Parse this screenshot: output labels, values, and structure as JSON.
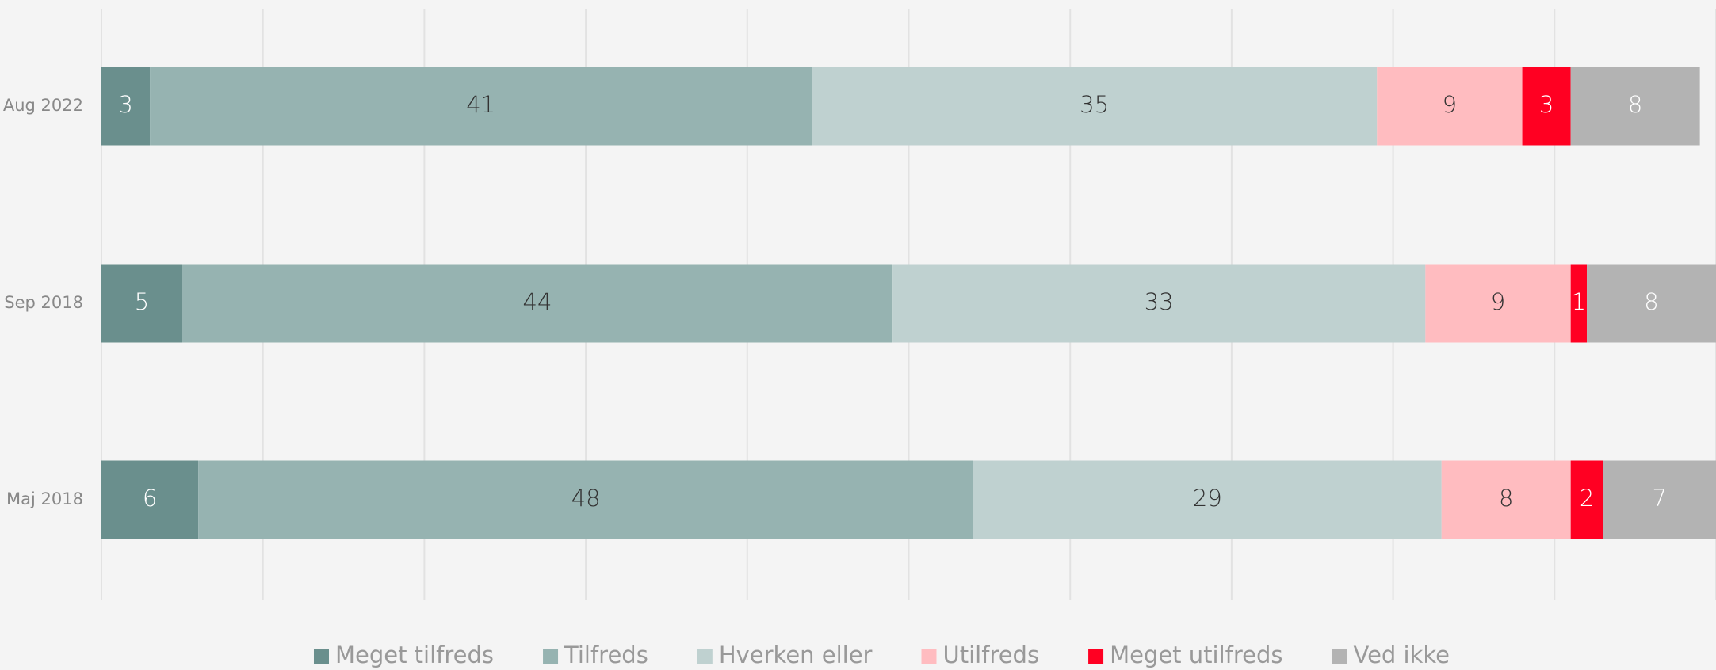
{
  "chart_data": {
    "type": "stacked_bar_horizontal",
    "categories": [
      "Aug 2022",
      "Sep 2018",
      "Maj 2018"
    ],
    "series": [
      {
        "name": "Meget tilfreds",
        "color": "#6a8f8d",
        "label_color": "#ffffff",
        "values": [
          3,
          5,
          6
        ]
      },
      {
        "name": "Tilfreds",
        "color": "#96b3b1",
        "label_color": "#333333",
        "values": [
          41,
          44,
          48
        ]
      },
      {
        "name": "Hverken eller",
        "color": "#bfd1d0",
        "label_color": "#333333",
        "values": [
          35,
          33,
          29
        ]
      },
      {
        "name": "Utilfreds",
        "color": "#ffbcc0",
        "label_color": "#333333",
        "values": [
          9,
          9,
          8
        ]
      },
      {
        "name": "Meget utilfreds",
        "color": "#ff0022",
        "label_color": "#ffffff",
        "values": [
          3,
          1,
          2
        ]
      },
      {
        "name": "Ved ikke",
        "color": "#b3b3b3",
        "label_color": "#ffffff",
        "values": [
          8,
          8,
          7
        ]
      }
    ],
    "xlim": [
      0,
      100
    ],
    "xticks": [
      0,
      10,
      20,
      30,
      40,
      50,
      60,
      70,
      80,
      90,
      100
    ],
    "grid": true,
    "legend": "bottom"
  }
}
